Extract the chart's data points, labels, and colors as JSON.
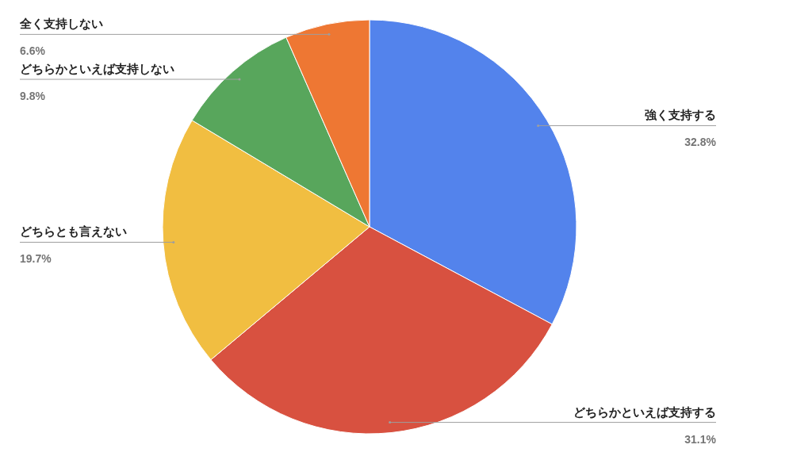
{
  "chart_data": {
    "type": "pie",
    "categories": [
      "強く支持する",
      "どちらかといえば支持する",
      "どちらとも言えない",
      "どちらかといえば支持しない",
      "全く支持しない"
    ],
    "values": [
      32.8,
      31.1,
      19.7,
      9.8,
      6.6
    ],
    "colors": [
      "#5383ec",
      "#d85140",
      "#f1be41",
      "#58a65c",
      "#ee7733"
    ],
    "value_labels": [
      "32.8%",
      "31.1%",
      "19.7%",
      "9.8%",
      "6.6%"
    ]
  }
}
